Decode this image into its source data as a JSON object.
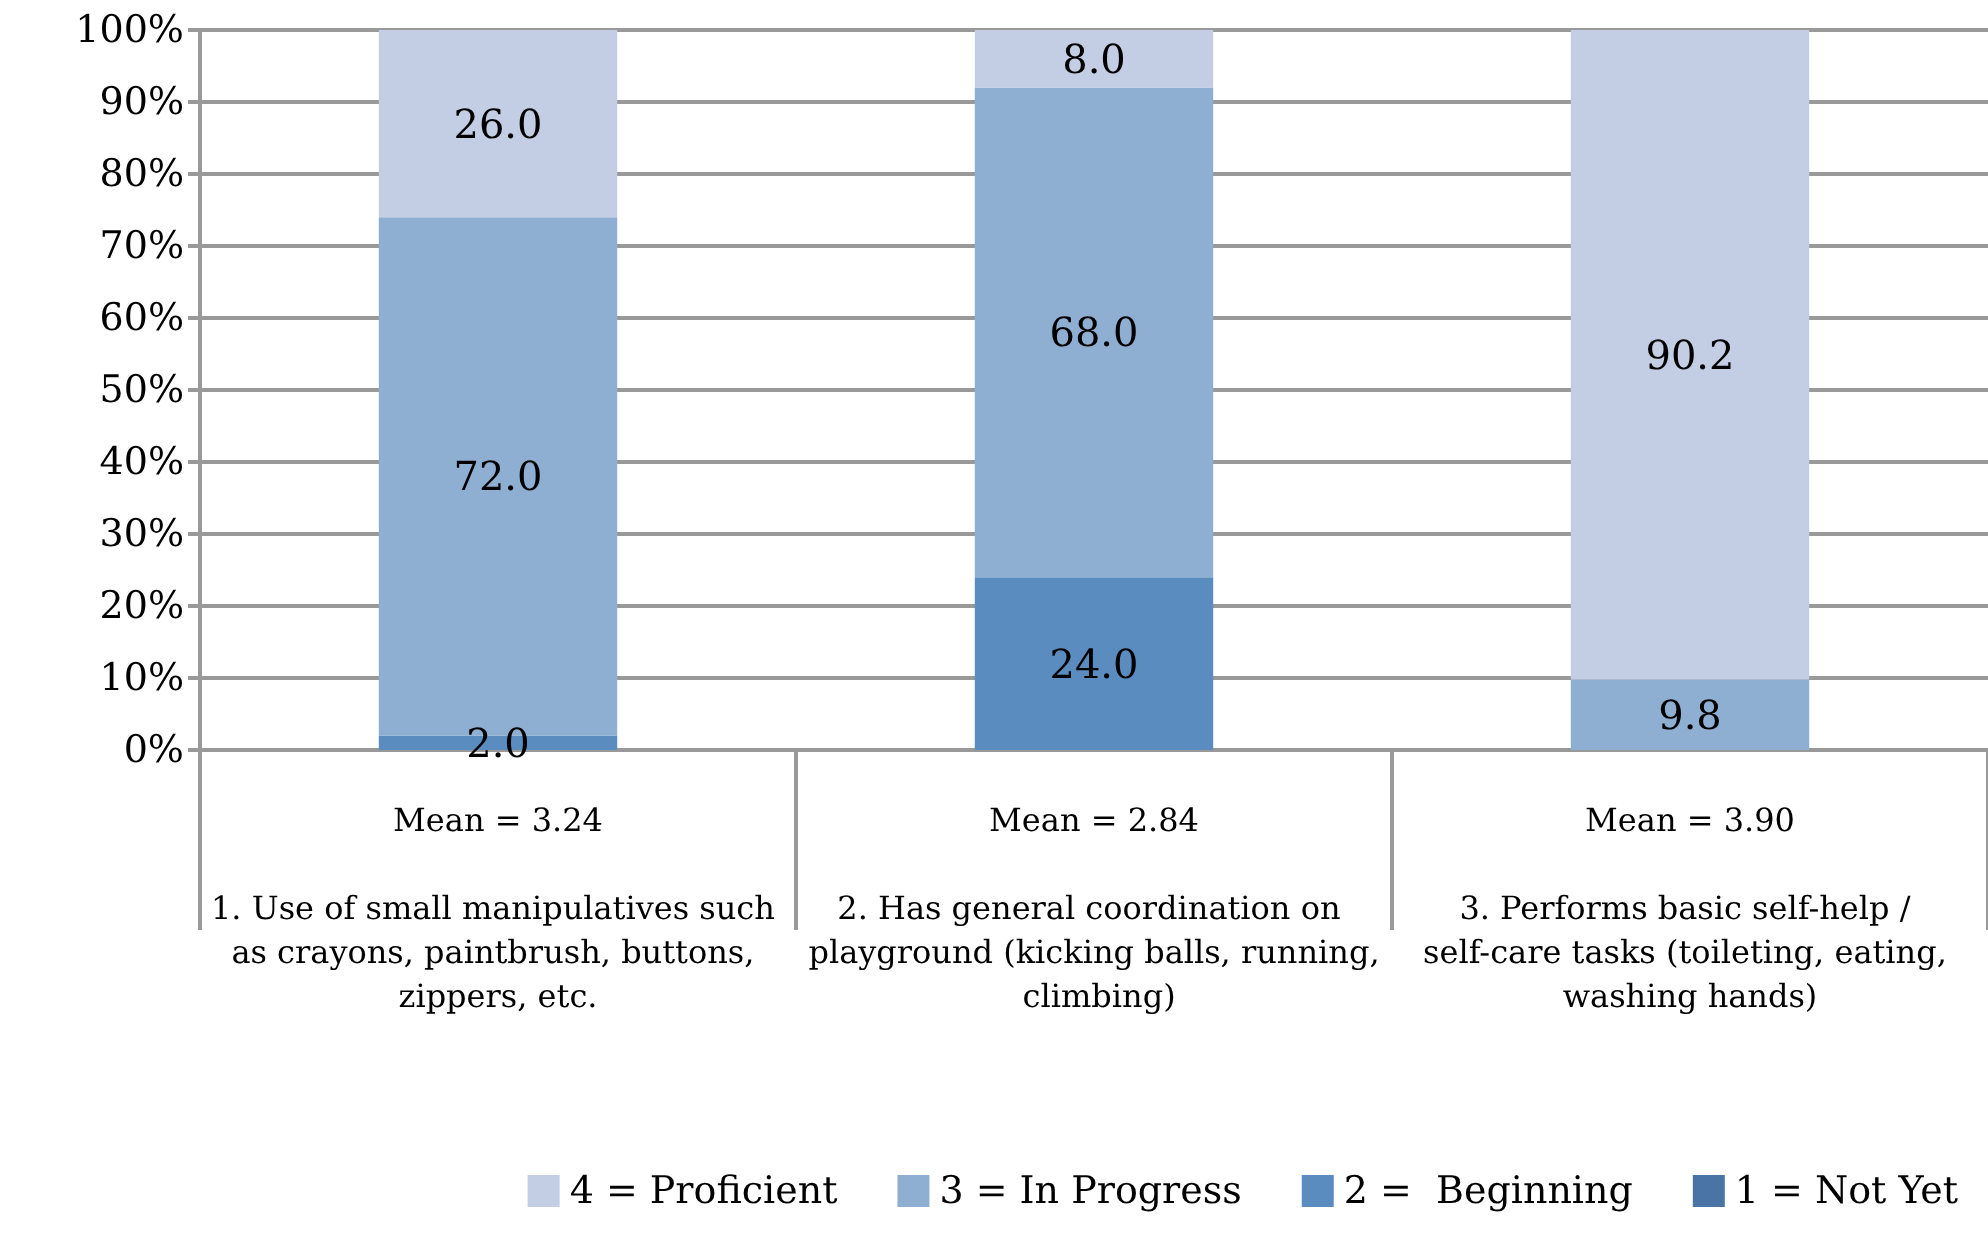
{
  "chart_data": {
    "type": "bar",
    "stacked": true,
    "categories": [
      "1. Use of small manipulatives such as crayons, paintbrush, buttons, zippers, etc.",
      "2. Has general coordination on playground (kicking balls, running, climbing)",
      "3. Performs basic self-help / self-care tasks (toileting, eating, washing hands)"
    ],
    "series": [
      {
        "name": "1 = Not Yet",
        "color": "#4a73a6",
        "values": [
          0,
          0,
          0
        ],
        "value_labels": [
          null,
          null,
          null
        ]
      },
      {
        "name": "2 =  Beginning",
        "color": "#5b8cc0",
        "values": [
          2.0,
          24.0,
          0
        ],
        "value_labels": [
          "2.0",
          "24.0",
          null
        ]
      },
      {
        "name": "3 = In Progress",
        "color": "#8eaed2",
        "values": [
          72.0,
          68.0,
          9.8
        ],
        "value_labels": [
          "72.0",
          "68.0",
          "9.8"
        ]
      },
      {
        "name": "4 = Proficient",
        "color": "#c3cde3",
        "values": [
          26.0,
          8.0,
          90.2
        ],
        "value_labels": [
          "26.0",
          "8.0",
          "90.2"
        ]
      }
    ],
    "annotations": [
      "Mean = 3.24",
      "Mean = 2.84",
      "Mean = 3.90"
    ],
    "ylim": [
      0,
      100
    ],
    "yticks": [
      {
        "value": 0,
        "label": "0%"
      },
      {
        "value": 10,
        "label": "10%"
      },
      {
        "value": 20,
        "label": "20%"
      },
      {
        "value": 30,
        "label": "30%"
      },
      {
        "value": 40,
        "label": "40%"
      },
      {
        "value": 50,
        "label": "50%"
      },
      {
        "value": 60,
        "label": "60%"
      },
      {
        "value": 70,
        "label": "70%"
      },
      {
        "value": 80,
        "label": "80%"
      },
      {
        "value": 90,
        "label": "90%"
      },
      {
        "value": 100,
        "label": "100%"
      }
    ],
    "grid": "y",
    "legend": "bottom"
  }
}
